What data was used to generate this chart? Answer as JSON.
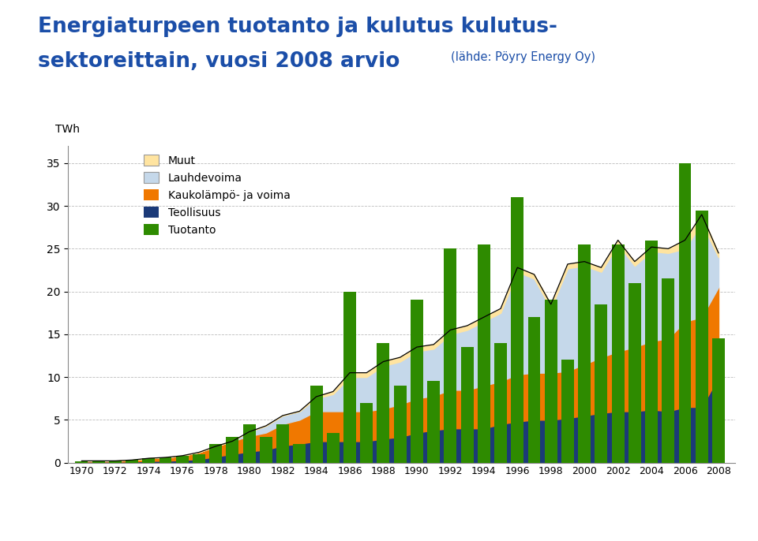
{
  "title_main": "Energiaturpeen tuotanto ja kulutus kulutus-\nsektoreittain, vuosi 2008 arvio",
  "title_sub": "(lähde: Pöyry Energy Oy)",
  "ylabel": "TWh",
  "years": [
    1970,
    1971,
    1972,
    1973,
    1974,
    1975,
    1976,
    1977,
    1978,
    1979,
    1980,
    1981,
    1982,
    1983,
    1984,
    1985,
    1986,
    1987,
    1988,
    1989,
    1990,
    1991,
    1992,
    1993,
    1994,
    1995,
    1996,
    1997,
    1998,
    1999,
    2000,
    2001,
    2002,
    2003,
    2004,
    2005,
    2006,
    2007,
    2008
  ],
  "Teollisuus": [
    0.1,
    0.1,
    0.1,
    0.1,
    0.2,
    0.2,
    0.3,
    0.4,
    0.7,
    1.0,
    1.3,
    1.5,
    2.0,
    2.2,
    2.5,
    2.5,
    2.5,
    2.5,
    2.8,
    3.0,
    3.5,
    3.8,
    4.0,
    4.0,
    4.0,
    4.5,
    4.8,
    5.0,
    5.0,
    5.2,
    5.5,
    5.8,
    6.0,
    6.0,
    6.2,
    6.0,
    6.5,
    6.5,
    10.0
  ],
  "Kaukolampo": [
    0.1,
    0.1,
    0.1,
    0.2,
    0.3,
    0.4,
    0.5,
    0.8,
    1.2,
    1.5,
    1.8,
    2.0,
    2.5,
    2.8,
    3.5,
    3.5,
    3.5,
    3.5,
    3.5,
    3.8,
    4.0,
    4.0,
    4.5,
    4.5,
    5.0,
    5.0,
    5.5,
    5.5,
    5.5,
    5.5,
    6.0,
    6.5,
    7.0,
    7.5,
    8.0,
    8.5,
    10.0,
    10.5,
    10.5
  ],
  "Lauhdevoima": [
    0.0,
    0.0,
    0.0,
    0.0,
    0.0,
    0.0,
    0.0,
    0.0,
    0.0,
    0.0,
    0.5,
    0.8,
    1.0,
    1.0,
    1.5,
    2.0,
    4.0,
    4.0,
    5.0,
    5.0,
    5.5,
    5.5,
    6.5,
    7.0,
    7.5,
    8.0,
    12.0,
    11.0,
    7.5,
    12.0,
    11.5,
    10.0,
    12.5,
    9.5,
    10.5,
    10.0,
    8.5,
    11.0,
    3.5
  ],
  "Muut": [
    0.0,
    0.0,
    0.0,
    0.0,
    0.0,
    0.0,
    0.0,
    0.0,
    0.0,
    0.0,
    0.0,
    0.0,
    0.0,
    0.0,
    0.2,
    0.3,
    0.5,
    0.5,
    0.5,
    0.5,
    0.5,
    0.5,
    0.5,
    0.5,
    0.5,
    0.5,
    0.5,
    0.5,
    0.5,
    0.5,
    0.5,
    0.5,
    0.5,
    0.5,
    0.5,
    0.5,
    1.0,
    1.0,
    0.5
  ],
  "Tuotanto": [
    0.15,
    0.15,
    0.2,
    0.3,
    0.5,
    0.6,
    0.8,
    1.0,
    2.2,
    3.0,
    4.5,
    3.0,
    4.5,
    2.2,
    9.0,
    3.5,
    20.0,
    7.0,
    14.0,
    9.0,
    19.0,
    9.5,
    25.0,
    13.5,
    25.5,
    14.0,
    31.0,
    17.0,
    19.0,
    12.0,
    25.5,
    18.5,
    25.5,
    21.0,
    26.0,
    21.5,
    35.0,
    29.5,
    14.5
  ],
  "colors": {
    "Muut": "#FFE4A0",
    "Lauhdevoima": "#C5D8EA",
    "Kaukolampo": "#F07800",
    "Teollisuus": "#1B3A78",
    "Tuotanto": "#2E8B00"
  },
  "ylim": [
    0,
    37
  ],
  "yticks": [
    0,
    5,
    10,
    15,
    20,
    25,
    30,
    35
  ],
  "xtick_years": [
    1970,
    1972,
    1974,
    1976,
    1978,
    1980,
    1982,
    1984,
    1986,
    1988,
    1990,
    1992,
    1994,
    1996,
    1998,
    2000,
    2002,
    2004,
    2006,
    2008
  ],
  "background_color": "#FFFFFF",
  "title_color": "#1B4EA8",
  "grid_color": "#AAAAAA",
  "bar_width": 0.75,
  "footer_stripes": [
    "#F0A000",
    "#E87820",
    "#E03840",
    "#C020A0",
    "#6010C0",
    "#2050D0",
    "#00A0D0",
    "#00C870",
    "#98D020",
    "#E8E000",
    "#F0A000",
    "#E05020",
    "#A01820"
  ],
  "footer_blue": "#0078C8"
}
